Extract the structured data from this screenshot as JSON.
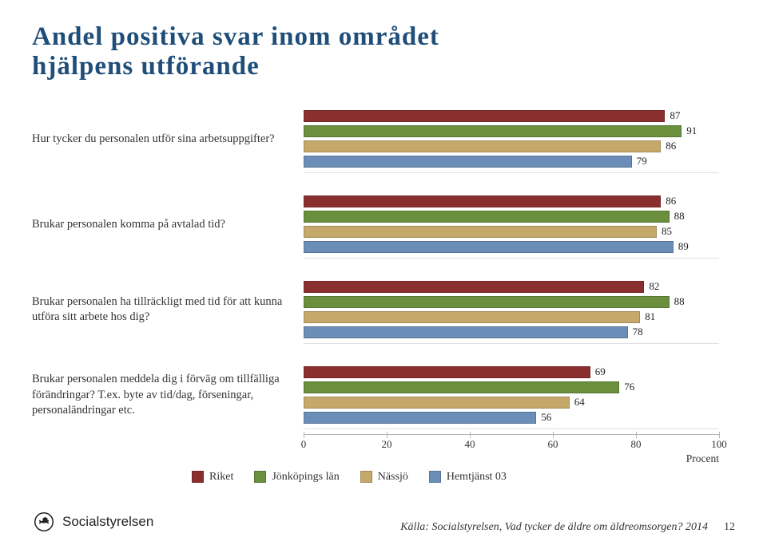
{
  "title_line1": "Andel positiva svar inom området",
  "title_line2": "hjälpens utförande",
  "series_colors": [
    "#8b2e2e",
    "#6a8f3d",
    "#c5a96a",
    "#6b8eb8"
  ],
  "series_names": [
    "Riket",
    "Jönköpings län",
    "Nässjö",
    "Hemtjänst 03"
  ],
  "x_axis": {
    "min": 0,
    "max": 100,
    "step": 20,
    "title": "Procent"
  },
  "questions": [
    {
      "label": "Hur tycker du personalen utför sina arbetsuppgifter?",
      "values": [
        87,
        91,
        86,
        79
      ]
    },
    {
      "label": "Brukar personalen komma på avtalad tid?",
      "values": [
        86,
        88,
        85,
        89
      ]
    },
    {
      "label": "Brukar personalen ha tillräckligt med tid för att kunna utföra sitt arbete hos dig?",
      "values": [
        82,
        88,
        81,
        78
      ]
    },
    {
      "label": "Brukar personalen meddela dig i förväg om tillfälliga förändringar? T.ex. byte av tid/dag, förseningar, personaländringar etc.",
      "values": [
        69,
        76,
        64,
        56
      ]
    }
  ],
  "footer": {
    "logo_text": "Socialstyrelsen",
    "source": "Källa: Socialstyrelsen, Vad tycker de äldre om äldreomsorgen? 2014",
    "page": "12"
  },
  "chart_background": "#ffffff",
  "title_color": "#1f4e79",
  "label_fontsize": 14.5,
  "barlabel_fontsize": 13
}
